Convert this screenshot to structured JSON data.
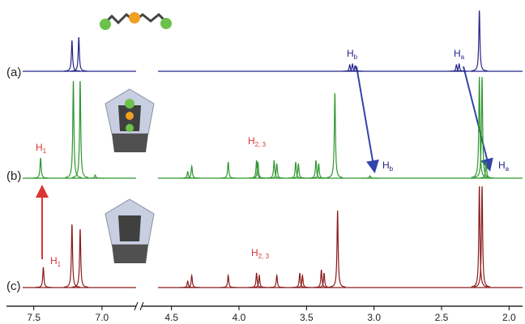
{
  "chart_data": {
    "type": "nmr",
    "x_segments": [
      {
        "xlim": [
          7.7,
          6.75
        ],
        "xticks": [
          7.5,
          {
            "value": 7,
            "label": "7.0"
          }
        ]
      },
      {
        "xlim": [
          4.72,
          1.9
        ],
        "xticks": [
          4.5,
          {
            "value": 4,
            "label": "4.0"
          },
          3.5,
          {
            "value": 3,
            "label": "3.0"
          },
          2.5,
          {
            "value": 2,
            "label": "2.0"
          }
        ]
      }
    ],
    "series": [
      {
        "name": "(a)",
        "color": "#24248a",
        "ppm": [
          7.22,
          7.17,
          3.18,
          3.16,
          3.14,
          2.39,
          2.37,
          2.22
        ],
        "intensity": [
          38,
          42,
          8,
          9,
          7,
          8,
          9,
          75
        ]
      },
      {
        "name": "(b)",
        "color": "#2f962f",
        "ppm": [
          7.45,
          7.21,
          7.16,
          7.05,
          4.38,
          4.35,
          4.08,
          3.87,
          3.86,
          3.74,
          3.72,
          3.58,
          3.56,
          3.43,
          3.41,
          3.29,
          3.03,
          2.22,
          2.2,
          2.17
        ],
        "intensity": [
          25,
          120,
          120,
          4,
          8,
          15,
          20,
          22,
          20,
          22,
          18,
          20,
          18,
          22,
          18,
          105,
          3,
          125,
          125,
          20
        ]
      },
      {
        "name": "(c)",
        "color": "#8b1a1a",
        "ppm": [
          7.43,
          7.22,
          7.16,
          4.38,
          4.35,
          4.08,
          3.87,
          3.85,
          3.72,
          3.55,
          3.53,
          3.39,
          3.37,
          3.27,
          2.22,
          2.2
        ],
        "intensity": [
          25,
          78,
          72,
          8,
          15,
          15,
          18,
          15,
          15,
          18,
          15,
          22,
          18,
          95,
          125,
          125
        ]
      }
    ],
    "annotations": [
      {
        "main": "H",
        "sub": "b"
      },
      {
        "main": "H",
        "sub": "a"
      },
      {
        "main": "H",
        "sub": "1"
      },
      {
        "main": "H",
        "sub": "2, 3"
      },
      {
        "main": "H",
        "sub": "b"
      },
      {
        "main": "H",
        "sub": "a"
      },
      {
        "main": "H",
        "sub": "1"
      },
      {
        "main": "H",
        "sub": "2, 3"
      }
    ]
  }
}
